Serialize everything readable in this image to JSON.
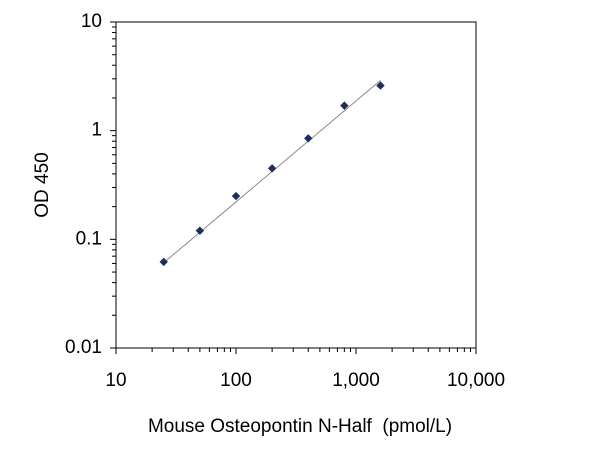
{
  "chart_data": {
    "type": "scatter",
    "title": "",
    "xlabel": "Mouse Osteopontin N-Half  (pmol/L)",
    "ylabel": "OD 450",
    "x_scale": "log",
    "y_scale": "log",
    "xlim": [
      10,
      10000
    ],
    "ylim": [
      0.01,
      10
    ],
    "x_ticks": [
      10,
      100,
      1000,
      10000
    ],
    "x_tick_labels": [
      "10",
      "100",
      "1,000",
      "10,000"
    ],
    "y_ticks": [
      0.01,
      0.1,
      1,
      10
    ],
    "y_tick_labels": [
      "0.01",
      "0.1",
      "1",
      "10"
    ],
    "grid": false,
    "legend": "none",
    "marker": "diamond",
    "marker_color": "#1f2d5c",
    "trendline_color": "#8a8a8a",
    "series": [
      {
        "x": [
          25,
          50,
          100,
          200,
          400,
          800,
          1600
        ],
        "y": [
          0.062,
          0.12,
          0.25,
          0.45,
          0.85,
          1.7,
          2.6
        ]
      }
    ],
    "trendline": {
      "x": [
        25,
        1600
      ],
      "y": [
        0.061,
        2.9
      ]
    }
  }
}
